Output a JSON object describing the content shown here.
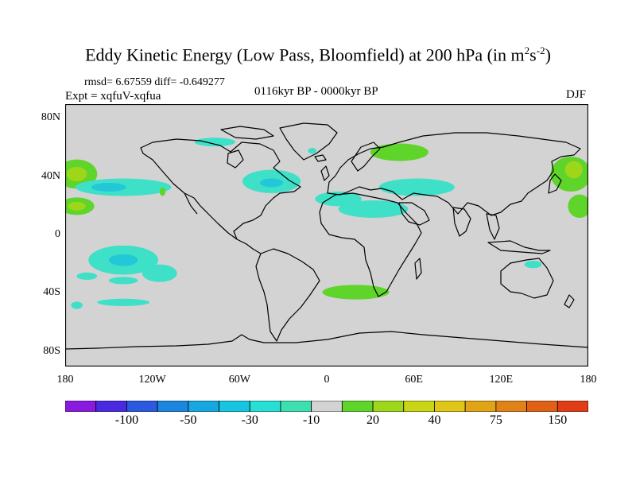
{
  "title": {
    "main": "Eddy Kinetic Energy (Low Pass, Bloomfield) at 200 hPa (in m",
    "sup1": "2",
    "unit_s": "s",
    "sup2": "-2",
    "close": ")"
  },
  "stats": "rmsd= 6.67559 diff= -0.649277",
  "experiment": "Expt = xqfuV-xqfua",
  "period": "0116kyr BP - 0000kyr BP",
  "season": "DJF",
  "map": {
    "projection": "cylindrical equidistant",
    "lon_range": [
      -180,
      180
    ],
    "lat_range": [
      -90,
      90
    ],
    "background_color": "#d3d3d3",
    "y_ticks": [
      {
        "lat": 80,
        "label": "80N"
      },
      {
        "lat": 40,
        "label": "40N"
      },
      {
        "lat": 0,
        "label": "0"
      },
      {
        "lat": -40,
        "label": "40S"
      },
      {
        "lat": -80,
        "label": "80S"
      }
    ],
    "x_ticks": [
      {
        "lon": -180,
        "label": "180"
      },
      {
        "lon": -120,
        "label": "120W"
      },
      {
        "lon": -60,
        "label": "60W"
      },
      {
        "lon": 0,
        "label": "0"
      },
      {
        "lon": 60,
        "label": "60E"
      },
      {
        "lon": 120,
        "label": "120E"
      },
      {
        "lon": 180,
        "label": "180"
      }
    ],
    "anomaly_regions": [
      {
        "name": "north-pacific-west",
        "lon": -172,
        "lat": 42,
        "rlon": 14,
        "rlat": 10,
        "color": "#5fd42a"
      },
      {
        "name": "north-pacific-west-core",
        "lon": -172,
        "lat": 42,
        "rlon": 7,
        "rlat": 5,
        "color": "#9ed61a"
      },
      {
        "name": "north-pacific-west-south",
        "lon": -172,
        "lat": 20,
        "rlon": 12,
        "rlat": 6,
        "color": "#5fd42a"
      },
      {
        "name": "north-pacific-west-south-core",
        "lon": -172,
        "lat": 20,
        "rlon": 6,
        "rlat": 3,
        "color": "#9ed61a"
      },
      {
        "name": "subtropical-north-pacific",
        "lon": -140,
        "lat": 33,
        "rlon": 33,
        "rlat": 6,
        "color": "#3ee0c8"
      },
      {
        "name": "subtropical-north-pacific-core",
        "lon": -150,
        "lat": 33,
        "rlon": 12,
        "rlat": 3,
        "color": "#22c8d8"
      },
      {
        "name": "mexico-spot",
        "lon": -113,
        "lat": 30,
        "rlon": 2,
        "rlat": 3,
        "color": "#5fd42a"
      },
      {
        "name": "hudson-bay",
        "lon": -77,
        "lat": 64,
        "rlon": 14,
        "rlat": 3,
        "color": "#3ee0c8"
      },
      {
        "name": "greenland-spot",
        "lon": -10,
        "lat": 58,
        "rlon": 3,
        "rlat": 2,
        "color": "#3ee0c8"
      },
      {
        "name": "north-atlantic",
        "lon": -38,
        "lat": 37,
        "rlon": 20,
        "rlat": 8,
        "color": "#3ee0c8"
      },
      {
        "name": "north-atlantic-core",
        "lon": -38,
        "lat": 36,
        "rlon": 8,
        "rlat": 3,
        "color": "#22c8d8"
      },
      {
        "name": "north-africa",
        "lon": 8,
        "lat": 25,
        "rlon": 16,
        "rlat": 5,
        "color": "#3ee0c8"
      },
      {
        "name": "arabia",
        "lon": 32,
        "lat": 18,
        "rlon": 24,
        "rlat": 6,
        "color": "#3ee0c8"
      },
      {
        "name": "middle-east",
        "lon": 62,
        "lat": 33,
        "rlon": 26,
        "rlat": 6,
        "color": "#3ee0c8"
      },
      {
        "name": "russia",
        "lon": 50,
        "lat": 57,
        "rlon": 20,
        "rlat": 6,
        "color": "#5fd42a"
      },
      {
        "name": "east-asia",
        "lon": 168,
        "lat": 42,
        "rlon": 14,
        "rlat": 12,
        "color": "#5fd42a"
      },
      {
        "name": "east-asia-core",
        "lon": 170,
        "lat": 45,
        "rlon": 6,
        "rlat": 6,
        "color": "#9ed61a"
      },
      {
        "name": "west-pacific-south",
        "lon": 174,
        "lat": 20,
        "rlon": 8,
        "rlat": 8,
        "color": "#5fd42a"
      },
      {
        "name": "south-pacific",
        "lon": -140,
        "lat": -17,
        "rlon": 24,
        "rlat": 10,
        "color": "#3ee0c8"
      },
      {
        "name": "south-pacific-core",
        "lon": -140,
        "lat": -17,
        "rlon": 10,
        "rlat": 4,
        "color": "#22c8d8"
      },
      {
        "name": "south-pacific-east",
        "lon": -115,
        "lat": -26,
        "rlon": 12,
        "rlat": 6,
        "color": "#3ee0c8"
      },
      {
        "name": "south-pacific-far-west",
        "lon": -165,
        "lat": -28,
        "rlon": 7,
        "rlat": 2.5,
        "color": "#3ee0c8"
      },
      {
        "name": "south-pacific-mid",
        "lon": -140,
        "lat": -31,
        "rlon": 10,
        "rlat": 2.5,
        "color": "#3ee0c8"
      },
      {
        "name": "southern-ocean-pacific",
        "lon": -140,
        "lat": -46,
        "rlon": 18,
        "rlat": 2.5,
        "color": "#3ee0c8"
      },
      {
        "name": "southern-ocean-far-west",
        "lon": -172,
        "lat": -48,
        "rlon": 4,
        "rlat": 2.5,
        "color": "#3ee0c8"
      },
      {
        "name": "southern-atlantic-indian",
        "lon": 20,
        "lat": -39,
        "rlon": 23,
        "rlat": 5,
        "color": "#5fd42a"
      },
      {
        "name": "australia",
        "lon": 142,
        "lat": -20,
        "rlon": 6,
        "rlat": 2.5,
        "color": "#3ee0c8"
      }
    ]
  },
  "colorbar": {
    "colors": [
      "#8a1ae0",
      "#4a2ae0",
      "#2a5ae0",
      "#1a86e0",
      "#16a6e0",
      "#16c6e0",
      "#26e0d6",
      "#3ee0b0",
      "#d3d3d3",
      "#5fd42a",
      "#9ed61a",
      "#c8d616",
      "#e0c616",
      "#e0a416",
      "#e08216",
      "#e06016",
      "#e03c16"
    ],
    "labels": [
      {
        "text": "-100",
        "after_box": 2
      },
      {
        "text": "-50",
        "after_box": 4
      },
      {
        "text": "-30",
        "after_box": 6
      },
      {
        "text": "-10",
        "after_box": 8
      },
      {
        "text": "20",
        "after_box": 10
      },
      {
        "text": "40",
        "after_box": 12
      },
      {
        "text": "75",
        "after_box": 14
      },
      {
        "text": "150",
        "after_box": 16
      }
    ]
  }
}
